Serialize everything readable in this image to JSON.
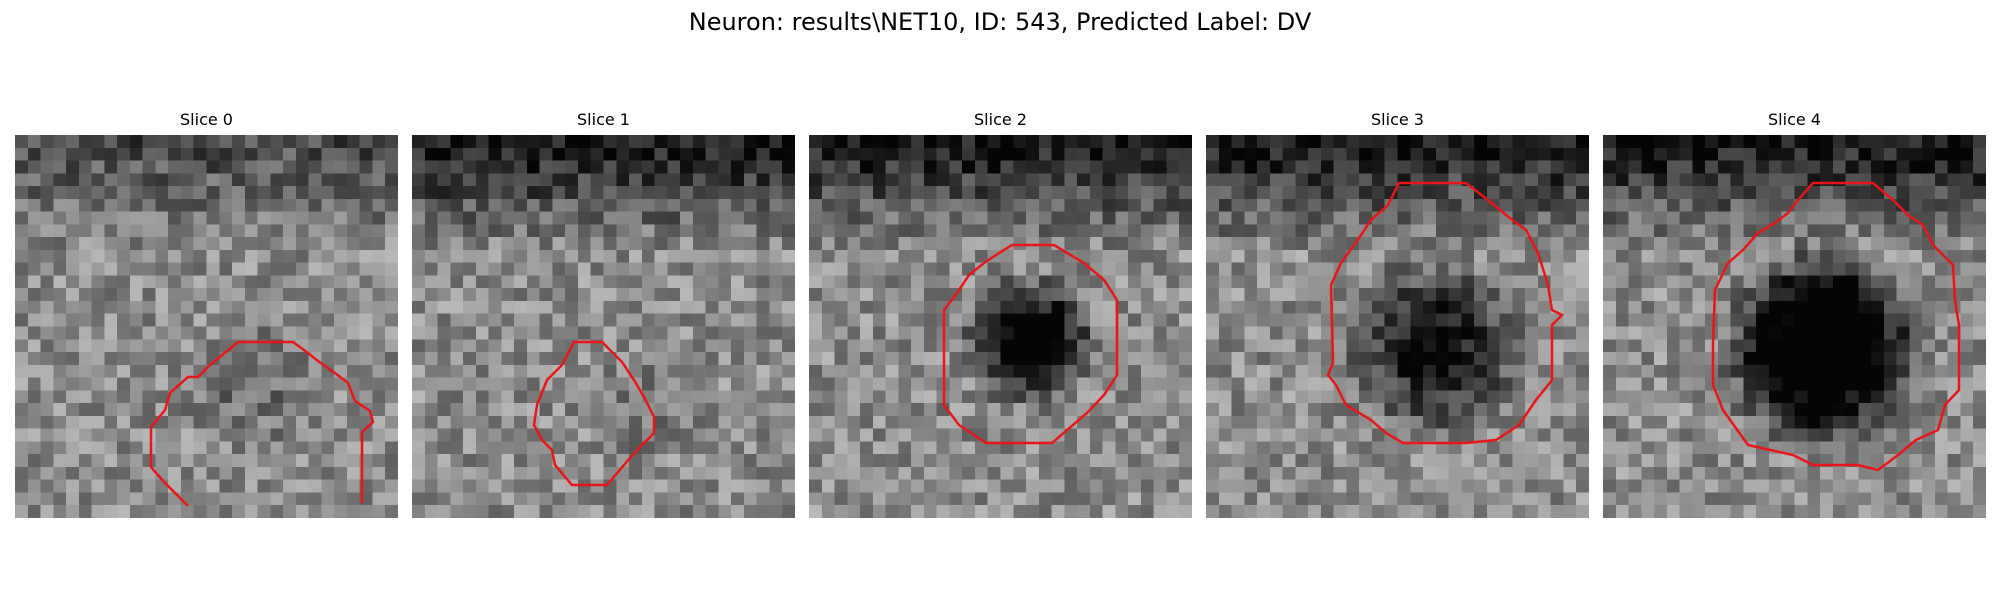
{
  "figure": {
    "title": "Neuron: results\\NET10, ID: 543, Predicted Label: DV"
  },
  "panels": [
    {
      "title": "Slice 0",
      "contour_color": "#e8151b"
    },
    {
      "title": "Slice 1",
      "contour_color": "#e8151b"
    },
    {
      "title": "Slice 2",
      "contour_color": "#e8151b"
    },
    {
      "title": "Slice 3",
      "contour_color": "#e8151b"
    },
    {
      "title": "Slice 4",
      "contour_color": "#e8151b"
    }
  ]
}
